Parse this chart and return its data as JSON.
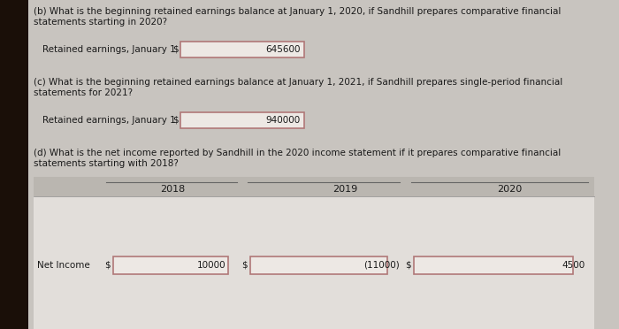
{
  "bg_left_color": "#2a1a0a",
  "bg_color": "#c8c4bf",
  "panel_color": "#e2deda",
  "box_border_color": "#b07878",
  "box_fill_color": "#ede8e4",
  "table_header_color": "#bab6b0",
  "text_color": "#1a1a1a",
  "b_question_line1": "(b) What is the beginning retained earnings balance at January 1, 2020, if Sandhill prepares comparative financial",
  "b_question_line2": "statements starting in 2020?",
  "b_label": "Retained earnings, January 1",
  "b_value": "645600",
  "c_question_line1": "(c) What is the beginning retained earnings balance at January 1, 2021, if Sandhill prepares single-period financial",
  "c_question_line2": "statements for 2021?",
  "c_label": "Retained earnings, January 1",
  "c_value": "940000",
  "d_question_line1": "(d) What is the net income reported by Sandhill in the 2020 income statement if it prepares comparative financial",
  "d_question_line2": "statements starting with 2018?",
  "d_years": [
    "2018",
    "2019",
    "2020"
  ],
  "d_net_income_label": "Net Income",
  "d_values": [
    "10000",
    "(11000)",
    "4500"
  ],
  "font_size_question": 7.5,
  "font_size_label": 7.5,
  "font_size_value": 7.5,
  "font_size_year": 8.0
}
